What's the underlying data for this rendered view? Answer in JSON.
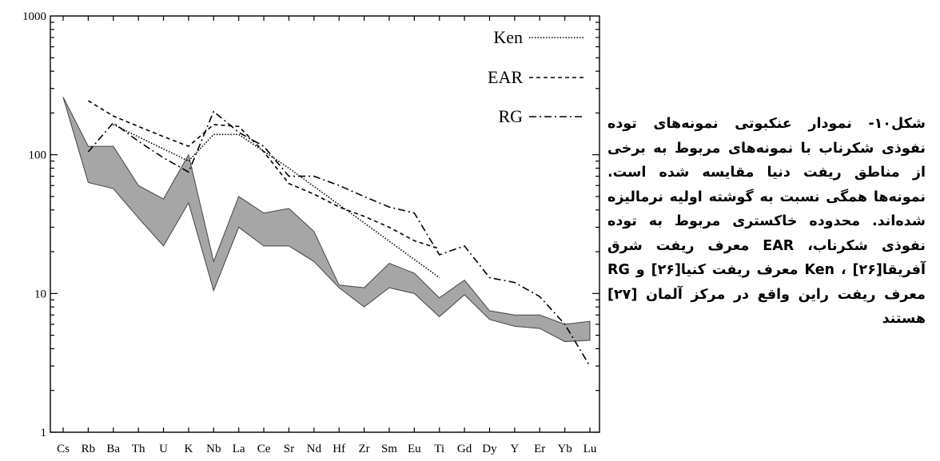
{
  "chart_data": {
    "type": "line",
    "yscale": "log",
    "ylim": [
      1,
      1000
    ],
    "yticks": [
      "1",
      "10",
      "100",
      "1000"
    ],
    "categories": [
      "Cs",
      "Rb",
      "Ba",
      "Th",
      "U",
      "K",
      "Nb",
      "La",
      "Ce",
      "Sr",
      "Nd",
      "Hf",
      "Zr",
      "Sm",
      "Eu",
      "Ti",
      "Gd",
      "Dy",
      "Y",
      "Er",
      "Yb",
      "Lu"
    ],
    "legend_position": "top-right",
    "band": {
      "fill_color": "#a6a6a6",
      "upper": [
        260,
        115,
        115,
        60,
        48,
        100,
        17,
        50,
        38,
        41,
        28,
        11.5,
        11,
        16.5,
        14,
        9.3,
        12.5,
        7.5,
        7,
        7,
        6,
        6.3
      ],
      "lower": [
        260,
        63,
        57,
        35,
        22,
        45,
        10.5,
        30,
        22,
        22,
        17,
        11,
        8,
        11,
        10,
        6.8,
        9.8,
        6.5,
        5.8,
        5.6,
        4.5,
        4.6
      ]
    },
    "series": [
      {
        "name": "Ken",
        "style": "dotted",
        "color": "#000000",
        "values": [
          null,
          null,
          165,
          null,
          110,
          90,
          140,
          140,
          null,
          80,
          null,
          null,
          null,
          null,
          null,
          13,
          null,
          null,
          null,
          null,
          null,
          null
        ]
      },
      {
        "name": "EAR",
        "style": "dashed",
        "color": "#000000",
        "values": [
          null,
          245,
          190,
          160,
          135,
          115,
          165,
          160,
          105,
          62,
          52,
          42,
          36,
          30,
          24,
          21,
          null,
          null,
          null,
          null,
          null,
          null
        ]
      },
      {
        "name": "RG",
        "style": "dash-dot",
        "color": "#000000",
        "values": [
          null,
          105,
          170,
          125,
          95,
          75,
          205,
          145,
          115,
          70,
          70,
          60,
          50,
          42,
          38,
          19,
          22,
          13,
          12,
          9.5,
          6,
          3
        ]
      }
    ]
  },
  "caption": "شکل۱۰- نمودار عنکبوتی نمونه‌های توده نفوذی شکرناب با نمونه‌های مربوط به برخی از مناطق ریفت دنیا مقایسه شده است. نمونه‌ها همگی نسبت به گوشته اولیه نرمالیزه شده‌اند. محدوده خاکستری مربوط به توده نفوذی شکرناب، EAR معرف ریفت شرق آفریقا[۲۶] ، Ken معرف ریفت کنیا[۲۶] و RG معرف ریفت راین واقع در مرکز آلمان [۲۷] هستند"
}
